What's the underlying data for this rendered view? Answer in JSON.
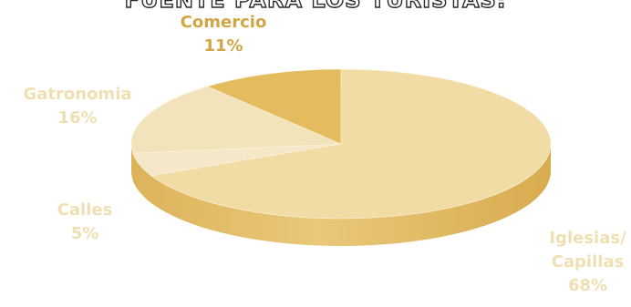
{
  "chart_data": {
    "type": "pie",
    "title": "FUENTE PARA LOS TURISTAS:",
    "slices": [
      {
        "label": "Iglesias/ Capillas",
        "label_lines": [
          "Iglesias/",
          "Capillas"
        ],
        "value": 68,
        "value_label": "68%"
      },
      {
        "label": "Calles",
        "label_lines": [
          "Calles"
        ],
        "value": 5,
        "value_label": "5%"
      },
      {
        "label": "Gatronomia",
        "label_lines": [
          "Gatronomia"
        ],
        "value": 16,
        "value_label": "16%"
      },
      {
        "label": "Comercio",
        "label_lines": [
          "Comercio"
        ],
        "value": 11,
        "value_label": "11%"
      }
    ],
    "colors": {
      "Iglesias/ Capillas": "#f1dca6",
      "Calles": "#f5e8c8",
      "Gatronomia": "#f3e3bb",
      "Comercio": "#e4bb5e",
      "label_primary": "#d1a646",
      "label_faint": "#f0dfb2",
      "side_shade": "#e6c57a"
    },
    "legend": "none",
    "style": "3d-pie"
  }
}
